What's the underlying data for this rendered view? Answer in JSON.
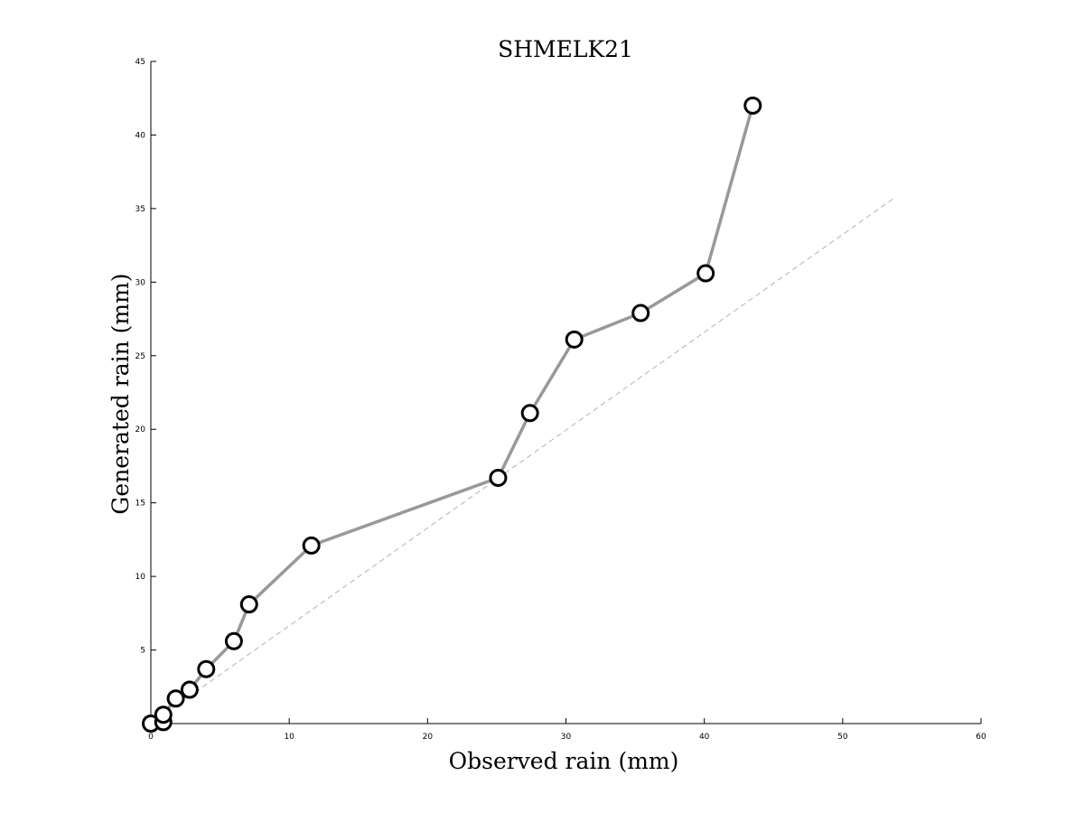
{
  "chart_data": {
    "type": "line",
    "title": "SHMELK21",
    "xlabel": "Observed rain (mm)",
    "ylabel": "Generated rain (mm)",
    "xlim": [
      0,
      60
    ],
    "ylim": [
      0,
      45
    ],
    "x_ticks": [
      0,
      10,
      20,
      30,
      40,
      50,
      60
    ],
    "y_ticks": [
      5,
      10,
      15,
      20,
      25,
      30,
      35,
      40,
      45
    ],
    "grid": false,
    "legend": "none",
    "series": [
      {
        "type": "line-with-markers",
        "color": "#999999",
        "marker": "open-circle",
        "marker_edge_color": "#000000",
        "points": [
          {
            "x": 0.0,
            "y": 0.0
          },
          {
            "x": 0.9,
            "y": 0.1
          },
          {
            "x": 0.9,
            "y": 0.6
          },
          {
            "x": 1.8,
            "y": 1.7
          },
          {
            "x": 2.8,
            "y": 2.3
          },
          {
            "x": 4.0,
            "y": 3.7
          },
          {
            "x": 6.0,
            "y": 5.6
          },
          {
            "x": 7.1,
            "y": 8.1
          },
          {
            "x": 11.6,
            "y": 12.1
          },
          {
            "x": 25.1,
            "y": 16.7
          },
          {
            "x": 27.4,
            "y": 21.1
          },
          {
            "x": 30.6,
            "y": 26.1
          },
          {
            "x": 35.4,
            "y": 27.9
          },
          {
            "x": 40.1,
            "y": 30.6
          },
          {
            "x": 43.5,
            "y": 42.0
          }
        ]
      }
    ],
    "reference_line": {
      "style": "dashed",
      "color": "#aaaaaa",
      "from": {
        "x": 0.0,
        "y": 0.0
      },
      "to": {
        "x": 53.7,
        "y": 35.7
      }
    }
  }
}
